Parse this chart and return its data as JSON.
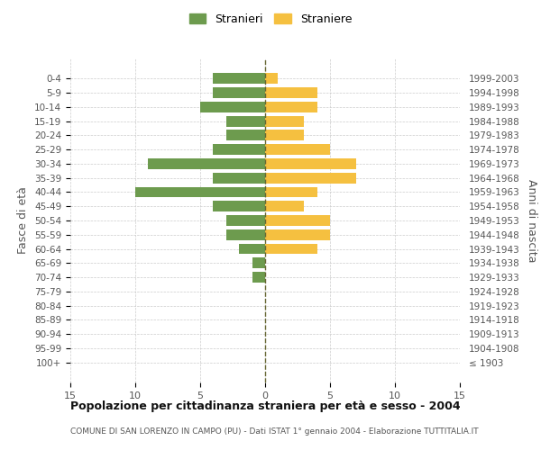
{
  "age_groups": [
    "100+",
    "95-99",
    "90-94",
    "85-89",
    "80-84",
    "75-79",
    "70-74",
    "65-69",
    "60-64",
    "55-59",
    "50-54",
    "45-49",
    "40-44",
    "35-39",
    "30-34",
    "25-29",
    "20-24",
    "15-19",
    "10-14",
    "5-9",
    "0-4"
  ],
  "birth_years": [
    "≤ 1903",
    "1904-1908",
    "1909-1913",
    "1914-1918",
    "1919-1923",
    "1924-1928",
    "1929-1933",
    "1934-1938",
    "1939-1943",
    "1944-1948",
    "1949-1953",
    "1954-1958",
    "1959-1963",
    "1964-1968",
    "1969-1973",
    "1974-1978",
    "1979-1983",
    "1984-1988",
    "1989-1993",
    "1994-1998",
    "1999-2003"
  ],
  "males": [
    0,
    0,
    0,
    0,
    0,
    0,
    1,
    1,
    2,
    3,
    3,
    4,
    10,
    4,
    9,
    4,
    3,
    3,
    5,
    4,
    4
  ],
  "females": [
    0,
    0,
    0,
    0,
    0,
    0,
    0,
    0,
    4,
    5,
    5,
    3,
    4,
    7,
    7,
    5,
    3,
    3,
    4,
    4,
    1
  ],
  "male_color": "#6d9b4e",
  "female_color": "#f5c040",
  "title": "Popolazione per cittadinanza straniera per età e sesso - 2004",
  "subtitle": "COMUNE DI SAN LORENZO IN CAMPO (PU) - Dati ISTAT 1° gennaio 2004 - Elaborazione TUTTITALIA.IT",
  "ylabel_left": "Fasce di età",
  "ylabel_right": "Anni di nascita",
  "legend_male": "Stranieri",
  "legend_female": "Straniere",
  "xlim": 15,
  "background_color": "#ffffff",
  "grid_color": "#cccccc"
}
